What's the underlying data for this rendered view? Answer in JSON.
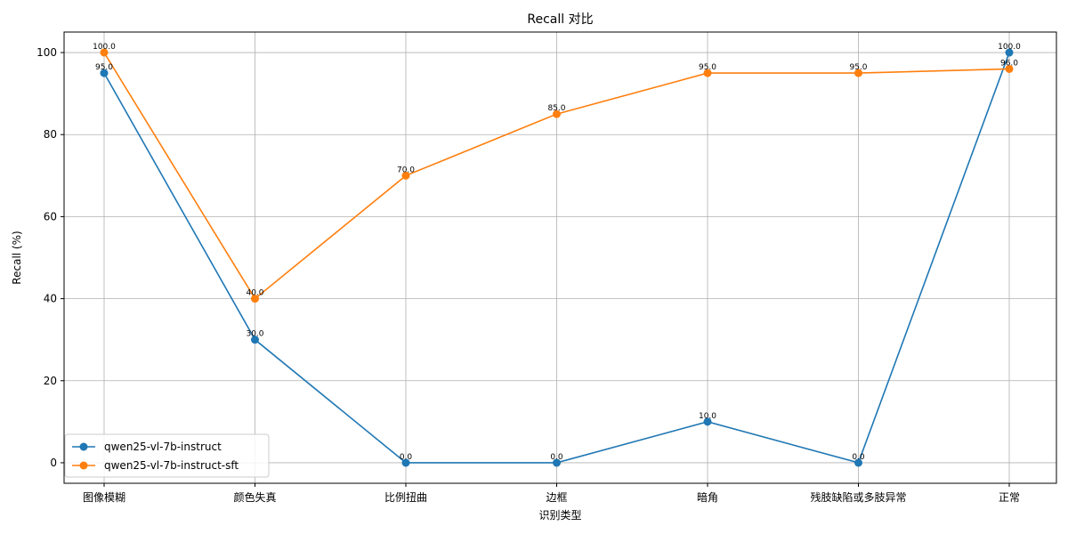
{
  "chart_data": {
    "type": "line",
    "title": "Recall 对比",
    "xlabel": "识别类型",
    "ylabel": "Recall (%)",
    "categories": [
      "图像模糊",
      "颜色失真",
      "比例扭曲",
      "边框",
      "暗角",
      "残肢缺陷或多肢异常",
      "正常"
    ],
    "ylim": [
      -5,
      105
    ],
    "yticks": [
      0,
      20,
      40,
      60,
      80,
      100
    ],
    "grid": true,
    "legend_position": "lower-left",
    "series": [
      {
        "name": "qwen25-vl-7b-instruct",
        "color": "#1f77b4",
        "values": [
          95.0,
          30.0,
          0.0,
          0.0,
          10.0,
          0.0,
          100.0
        ],
        "labels": [
          "95.0",
          "30.0",
          "0.0",
          "0.0",
          "10.0",
          "0.0",
          "100.0"
        ]
      },
      {
        "name": "qwen25-vl-7b-instruct-sft",
        "color": "#ff7f0e",
        "values": [
          100.0,
          40.0,
          70.0,
          85.0,
          95.0,
          95.0,
          96.0
        ],
        "labels": [
          "100.0",
          "40.0",
          "70.0",
          "85.0",
          "95.0",
          "95.0",
          "96.0"
        ]
      }
    ]
  }
}
